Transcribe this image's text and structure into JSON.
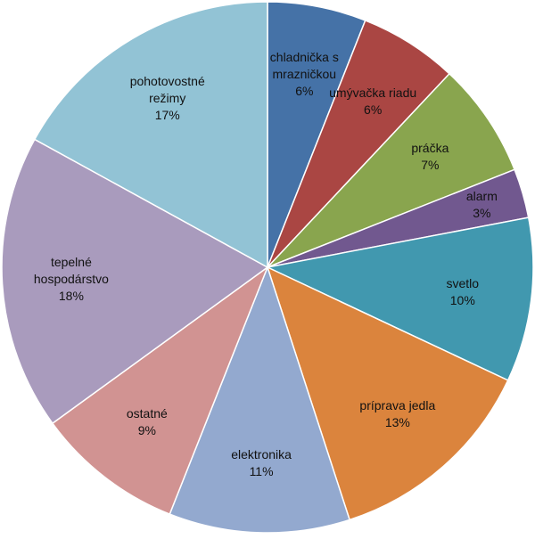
{
  "chart_data": {
    "type": "pie",
    "categories": [
      "chladnička s mrazničkou",
      "umývačka riadu",
      "práčka",
      "alarm",
      "svetlo",
      "príprava jedla",
      "elektronika",
      "ostatné",
      "tepelné hospodárstvo",
      "pohotovostné režimy"
    ],
    "values": [
      6,
      6,
      7,
      3,
      10,
      13,
      11,
      9,
      18,
      17
    ],
    "value_labels": [
      "6%",
      "6%",
      "7%",
      "3%",
      "10%",
      "13%",
      "11%",
      "9%",
      "18%",
      "17%"
    ],
    "colors": [
      "#4572a7",
      "#aa4643",
      "#89a54e",
      "#71588f",
      "#4198af",
      "#db843d",
      "#93a9cf",
      "#d19392",
      "#a99bbd",
      "#92c3d5"
    ]
  }
}
